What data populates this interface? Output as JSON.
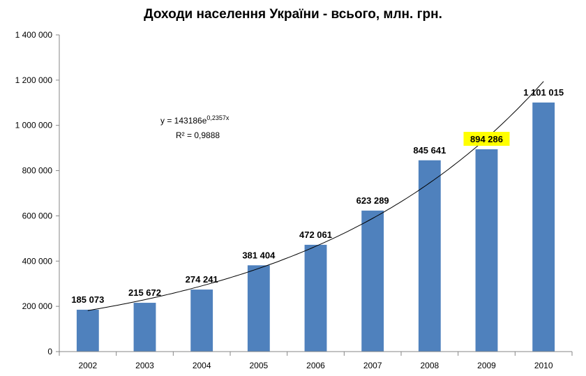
{
  "chart_data": {
    "type": "bar",
    "title": "Доходи населення України - всього, млн. грн.",
    "categories": [
      "2002",
      "2003",
      "2004",
      "2005",
      "2006",
      "2007",
      "2008",
      "2009",
      "2010"
    ],
    "values": [
      185073,
      215672,
      274241,
      381404,
      472061,
      623289,
      845641,
      894286,
      1101015
    ],
    "data_labels": [
      "185 073",
      "215 672",
      "274 241",
      "381 404",
      "472 061",
      "623 289",
      "845 641",
      "894 286",
      "1 101 015"
    ],
    "highlighted_label_index": 7,
    "ylim": [
      0,
      1400000
    ],
    "yticks": [
      0,
      200000,
      400000,
      600000,
      800000,
      1000000,
      1200000,
      1400000
    ],
    "ytick_labels": [
      "0",
      "200 000",
      "400 000",
      "600 000",
      "800 000",
      "1 000 000",
      "1 200 000",
      "1 400 000"
    ],
    "gridlines": false,
    "trendline": {
      "type": "exponential",
      "a": 143186,
      "b": 0.2357,
      "equation_prefix": "y = 143186e",
      "equation_exponent": "0,2357x",
      "r_squared": "R² = 0,9888"
    },
    "colors": {
      "bar": "#4F81BD",
      "highlight": "#FFFF00",
      "axis": "#868686",
      "trend": "#000000"
    }
  }
}
